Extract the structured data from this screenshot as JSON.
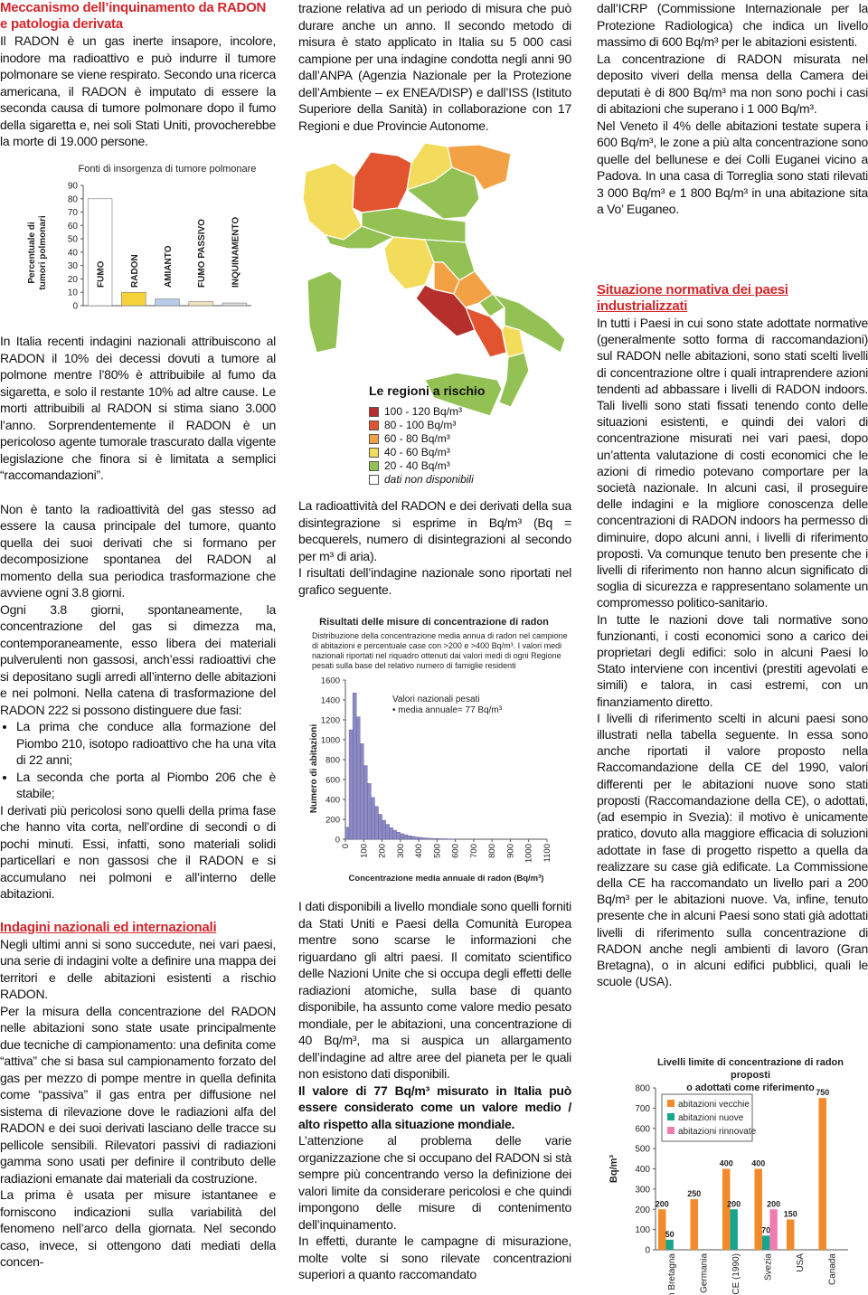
{
  "document": {
    "heading1": "Meccanismo dell’inquinamento da RADON e patologia derivata",
    "p1": "Il RADON è un gas inerte insapore, incolore, inodore ma radioattivo e può indurre il tumore polmonare se viene respirato. Secondo una ricerca americana, il RADON è imputato di essere la seconda causa di tumore polmonare dopo il fumo della sigaretta e, nei soli Stati Uniti, provocherebbe la morte di 19.000 persone.",
    "p2": "In Italia recenti indagini nazionali attribuiscono al RADON il 10% dei decessi dovuti a tumore al polmone mentre l’80% è attribuibile al fumo da sigaretta, e solo il restante 10% ad altre cause. Le morti attribuibili al RADON si stima siano 3.000 l’anno. Sorprendentemente il RADON è un pericoloso agente tumorale trascurato dalla vigente legislazione che finora si è limitata a semplici “raccomandazioni”.",
    "p3": "Non è tanto la radioattività del gas stesso ad essere la causa principale del tumore, quanto quella dei suoi derivati che si formano per decomposizione spontanea del RADON al momento della sua periodica trasformazione che avviene ogni 3.8 giorni.",
    "p4": "Ogni 3.8 giorni, spontaneamente, la concentrazione del gas si dimezza ma, contemporaneamente, esso libera dei materiali pulverulenti non gassosi, anch’essi radioattivi che si depositano sugli arredi all’interno delle abitazioni e nei polmoni. Nella catena di trasformazione del RADON 222 si possono distinguere due fasi:",
    "bullets": [
      "La prima che conduce alla formazione del Piombo 210, isotopo radioattivo che ha una vita di 22 anni;",
      "La seconda che porta al Piombo 206 che è stabile;"
    ],
    "p5": "I derivati più pericolosi sono quelli della prima fase che hanno vita corta, nell’ordine di secondi o di pochi minuti. Essi, infatti, sono materiali solidi particellari e non gassosi che il RADON e si accumulano nei polmoni e all’interno delle abitazioni.",
    "heading2": "Indagini nazionali ed internazionali",
    "p6": "Negli ultimi anni si sono succedute, nei vari paesi, una serie di indagini volte a definire una mappa dei territori e delle abitazioni esistenti a rischio RADON.",
    "p7": "Per la misura della concentrazione del RADON nelle abitazioni sono state usate principalmente due tecniche di campionamento: una definita come “attiva” che si basa sul campionamento forzato del gas per mezzo di pompe mentre in quella definita come “passiva” il gas entra per diffusione nel sistema di rilevazione dove le radiazioni alfa del RADON e dei suoi derivati lasciano delle tracce su pellicole sensibili. Rilevatori passivi di radiazioni gamma sono usati per definire il contributo delle radiazioni emanate dai materiali da costruzione.",
    "p8": "La prima è usata per misure istantanee e forniscono indicazioni sulla variabilità del fenomeno nell’arco della giornata. Nel secondo caso, invece, si ottengono dati mediati della concen-",
    "p9": "trazione relativa ad un periodo di misura che può durare anche un anno. Il secondo metodo di misura è stato applicato in Italia su 5 000 casi campione per una indagine condotta negli anni 90 dall’ANPA (Agenzia Nazionale per la Protezione dell’Ambiente – ex ENEA/DISP) e dall’ISS (Istituto Superiore della Sanità) in collaborazione con 17 Regioni e due Provincie Autonome.",
    "p10": "La radioattività del RADON e dei derivati della sua disintegrazione si esprime in Bq/m³ (Bq = becquerels, numero di disintegrazioni al secondo per m³ di aria).",
    "p11": "I risultati dell’indagine nazionale sono riportati nel grafico seguente.",
    "p12": "I dati disponibili a livello mondiale sono quelli forniti da Stati Uniti e Paesi della Comunità Europea mentre sono scarse le informazioni che riguardano gli altri paesi. Il comitato scientifico delle Nazioni Unite che si occupa degli effetti delle radiazioni atomiche, sulla base di quanto disponibile, ha assunto come valore medio pesato mondiale, per le abitazioni, una concentrazione di 40 Bq/m³, ma si auspica un allargamento dell’indagine ad altre aree del pianeta per le quali non esistono dati disponibili.",
    "p13": "Il valore di 77 Bq/m³ misurato in Italia può essere considerato come un valore medio / alto rispetto alla situazione mondiale.",
    "p14": "L’attenzione al problema delle varie organizzazione che si occupano del RADON si stà sempre più concentrando verso la definizione dei valori limite da considerare pericolosi e che quindi impongono delle misure di contenimento dell’inquinamento.",
    "p15": "In effetti, durante le campagne di misurazione, molte volte si sono rilevate concentrazioni superiori a quanto raccomandato",
    "p16": "dall’ICRP (Commissione Internazionale per la Protezione Radiologica) che indica un livello massimo di 600 Bq/m³ per le abitazioni esistenti.",
    "p17": "La concentrazione di RADON misurata nel deposito viveri della mensa della Camera dei deputati è di 800 Bq/m³ ma non sono pochi i casi di abitazioni che superano i 1 000 Bq/m³.",
    "p18": "Nel Veneto il 4% delle abitazioni testate supera i 600 Bq/m³, le zone a più alta concentrazione sono quelle del bellunese e dei Colli Euganei vicino a Padova. In una casa di Torreglia sono stati rilevati 3 000 Bq/m³ e 1 800 Bq/m³ in una abitazione sita a Vo’ Euganeo.",
    "heading3": "Situazione normativa dei paesi industrializzati",
    "p19": "In tutti i Paesi in cui sono state adottate normative (generalmente sotto forma di raccomandazioni) sul RADON nelle abitazioni, sono stati scelti livelli di concentrazione oltre i quali intraprendere azioni tendenti ad abbassare i livelli di RADON indoors. Tali livelli sono stati fissati tenendo conto delle situazioni esistenti, e quindi dei valori di concentrazione misurati nei vari paesi, dopo un’attenta valutazione di costi economici che le azioni di rimedio potevano comportare per la società nazionale. In alcuni casi, il proseguire delle indagini e la migliore conoscenza delle concentrazioni di RADON indoors ha permesso di diminuire, dopo alcuni anni, i livelli di riferimento proposti. Va comunque tenuto ben presente che i livelli di riferimento non hanno alcun significato di soglia di sicurezza e rappresentano solamente un compromesso politico-sanitario.",
    "p20": "In tutte le nazioni dove tali normative sono funzionanti, i costi economici sono a carico dei proprietari degli edifici: solo in alcuni Paesi lo Stato interviene con incentivi (prestiti agevolati e simili) e talora, in casi estremi, con un finanziamento diretto.",
    "p21": "I livelli di riferimento scelti in alcuni paesi sono illustrati nella tabella seguente. In essa sono anche riportati il valore proposto nella Raccomandazione della CE del 1990, valori differenti per le abitazioni nuove sono stati proposti (Raccomandazione della CE), o adottati, (ad esempio in Svezia): il motivo è unicamente pratico, dovuto alla maggiore efficacia di soluzioni adottate in fase di progetto rispetto a quella da realizzare su case già edificate. La Commissione della CE ha raccomandato un livello pari a 200 Bq/m³ per le abitazioni nuove. Va, infine, tenuto presente che in alcuni Paesi sono stati già adottati livelli di riferimento sulla concentrazione di RADON anche negli ambienti di lavoro (Gran Bretagna), o in alcuni edifici pubblici, quali le scuole (USA)."
  },
  "map": {
    "title": "Le regioni a rischio",
    "legend": [
      {
        "label": "100 - 120 Bq/m³",
        "color": "#b52f2c"
      },
      {
        "label": "80 - 100 Bq/m³",
        "color": "#e2532f"
      },
      {
        "label": "60 - 80 Bq/m³",
        "color": "#f2a245"
      },
      {
        "label": "40 - 60 Bq/m³",
        "color": "#f3dc5c"
      },
      {
        "label": "20 - 40 Bq/m³",
        "color": "#93c153"
      },
      {
        "label": "dati non disponibili",
        "color": "#ffffff"
      }
    ]
  },
  "chart_data": [
    {
      "type": "bar",
      "title": "Fonti di insorgenza di tumore polmonare",
      "y_label": [
        "Percentuale di",
        "tumori polmonari"
      ],
      "categories": [
        "FUMO",
        "RADON",
        "AMIANTO",
        "FUMO PASSIVO",
        "INQUINAMENTO"
      ],
      "values": [
        80,
        10,
        5,
        3,
        2
      ],
      "colors": [
        "#ffffff",
        "#f6d23a",
        "#b9cbe8",
        "#efe2c0",
        "#dcdcdc"
      ],
      "ylim": [
        0,
        90
      ],
      "yticks": [
        0,
        10,
        20,
        30,
        40,
        50,
        60,
        70,
        80,
        90
      ]
    },
    {
      "type": "histogram",
      "title": "Risultati delle misure di concentrazione di radon",
      "subtitle": "Distribuzione della concentrazione media annua di radon nel campione di abitazioni e percentuale case con >200 e >400 Bq/m³. I valori medi nazionali riportati nel riquadro ottenuti dai valori medi di ogni Regione pesati sulla base del relativo numero di famiglie residenti",
      "y_label": "Numero di abitazioni",
      "x_label": "Concentrazione media annuale di radon (Bq/m³)",
      "annotations": [
        "Valori nazionali pesati",
        "• media annuale= 77 Bq/m³"
      ],
      "bins": [
        0,
        20,
        40,
        60,
        80,
        100,
        120,
        140,
        160,
        180,
        200,
        220,
        240,
        260,
        280,
        300,
        320,
        340,
        360,
        380,
        400,
        420,
        440,
        460,
        480,
        500,
        520,
        540,
        560,
        580,
        600
      ],
      "values": [
        120,
        1100,
        1470,
        1230,
        960,
        740,
        560,
        420,
        330,
        250,
        190,
        150,
        115,
        90,
        70,
        55,
        45,
        35,
        28,
        22,
        18,
        14,
        11,
        9,
        7,
        6,
        5,
        4,
        3,
        3
      ],
      "color": "#8d89c2",
      "xlim": [
        0,
        1100
      ],
      "xticks": [
        0,
        100,
        200,
        300,
        400,
        500,
        600,
        700,
        800,
        900,
        1000,
        1100
      ],
      "ylim": [
        0,
        1600
      ],
      "yticks": [
        0,
        200,
        400,
        600,
        800,
        1000,
        1200,
        1400,
        1600
      ]
    },
    {
      "type": "bar",
      "title": [
        "Livelli limite di concentrazione di radon proposti",
        "o adottati come riferimento"
      ],
      "y_label": "Bq/m³",
      "categories": [
        "Gran Bretagna",
        "Germania",
        "CE (1990)",
        "Svezia",
        "USA",
        "Canada"
      ],
      "series": [
        {
          "name": "abitazioni vecchie",
          "color": "#f28a2a",
          "values": [
            200,
            250,
            400,
            400,
            150,
            750
          ]
        },
        {
          "name": "abitazioni nuove",
          "color": "#17a58d",
          "values": [
            50,
            null,
            200,
            70,
            null,
            null
          ]
        },
        {
          "name": "abitazioni rinnovate",
          "color": "#f17cb2",
          "values": [
            null,
            null,
            null,
            200,
            null,
            null
          ]
        }
      ],
      "ylim": [
        0,
        800
      ],
      "yticks": [
        0,
        100,
        200,
        300,
        400,
        500,
        600,
        700,
        800
      ]
    }
  ]
}
